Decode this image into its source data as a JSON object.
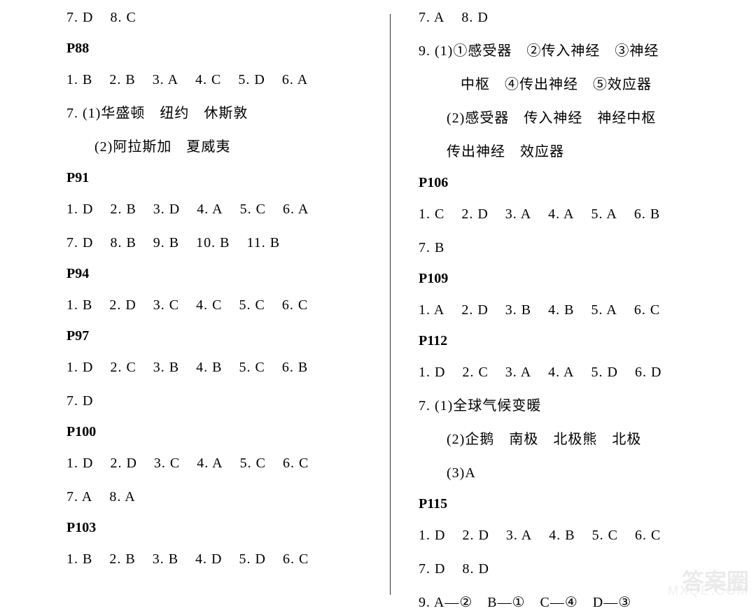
{
  "left_column": {
    "top_line": [
      {
        "text": "7. D"
      },
      {
        "text": "8. C"
      }
    ],
    "p88": {
      "header": "P88",
      "line1": [
        {
          "text": "1. B"
        },
        {
          "text": "2. B"
        },
        {
          "text": "3. A"
        },
        {
          "text": "4. C"
        },
        {
          "text": "5. D"
        },
        {
          "text": "6. A"
        }
      ],
      "line2": "7. (1)华盛顿　纽约　休斯敦",
      "line3": "(2)阿拉斯加　夏威夷"
    },
    "p91": {
      "header": "P91",
      "line1": [
        {
          "text": "1. D"
        },
        {
          "text": "2. B"
        },
        {
          "text": "3. D"
        },
        {
          "text": "4. A"
        },
        {
          "text": "5. C"
        },
        {
          "text": "6. A"
        }
      ],
      "line2": [
        {
          "text": "7. D"
        },
        {
          "text": "8. B"
        },
        {
          "text": "9. B"
        },
        {
          "text": "10. B"
        },
        {
          "text": "11. B"
        }
      ]
    },
    "p94": {
      "header": "P94",
      "line1": [
        {
          "text": "1. B"
        },
        {
          "text": "2. D"
        },
        {
          "text": "3. C"
        },
        {
          "text": "4. C"
        },
        {
          "text": "5. C"
        },
        {
          "text": "6. C"
        }
      ]
    },
    "p97": {
      "header": "P97",
      "line1": [
        {
          "text": "1. D"
        },
        {
          "text": "2. C"
        },
        {
          "text": "3. B"
        },
        {
          "text": "4. B"
        },
        {
          "text": "5. C"
        },
        {
          "text": "6. B"
        }
      ],
      "line2": [
        {
          "text": "7. D"
        }
      ]
    },
    "p100": {
      "header": "P100",
      "line1": [
        {
          "text": "1. D"
        },
        {
          "text": "2. D"
        },
        {
          "text": "3. C"
        },
        {
          "text": "4. A"
        },
        {
          "text": "5. C"
        },
        {
          "text": "6. C"
        }
      ],
      "line2": [
        {
          "text": "7. A"
        },
        {
          "text": "8. A"
        }
      ]
    },
    "p103": {
      "header": "P103",
      "line1": [
        {
          "text": "1. B"
        },
        {
          "text": "2. B"
        },
        {
          "text": "3. B"
        },
        {
          "text": "4. D"
        },
        {
          "text": "5. D"
        },
        {
          "text": "6. C"
        }
      ]
    }
  },
  "right_column": {
    "top_line": [
      {
        "text": "7. A"
      },
      {
        "text": "8. D"
      }
    ],
    "q9_line1": "9. (1)①感受器　②传入神经　③神经",
    "q9_line2": "中枢　④传出神经　⑤效应器",
    "q9_line3": "(2)感受器　传入神经　神经中枢",
    "q9_line4": "传出神经　效应器",
    "p106": {
      "header": "P106",
      "line1": [
        {
          "text": "1. C"
        },
        {
          "text": "2. D"
        },
        {
          "text": "3. A"
        },
        {
          "text": "4. A"
        },
        {
          "text": "5. A"
        },
        {
          "text": "6. B"
        }
      ],
      "line2": [
        {
          "text": "7. B"
        }
      ]
    },
    "p109": {
      "header": "P109",
      "line1": [
        {
          "text": "1. A"
        },
        {
          "text": "2. D"
        },
        {
          "text": "3. B"
        },
        {
          "text": "4. B"
        },
        {
          "text": "5. A"
        },
        {
          "text": "6. C"
        }
      ]
    },
    "p112": {
      "header": "P112",
      "line1": [
        {
          "text": "1. D"
        },
        {
          "text": "2. C"
        },
        {
          "text": "3. A"
        },
        {
          "text": "4. A"
        },
        {
          "text": "5. D"
        },
        {
          "text": "6. D"
        }
      ],
      "line2": "7. (1)全球气候变暖",
      "line3": "(2)企鹅　南极　北极熊　北极",
      "line4": "(3)A"
    },
    "p115": {
      "header": "P115",
      "line1": [
        {
          "text": "1. D"
        },
        {
          "text": "2. D"
        },
        {
          "text": "3. A"
        },
        {
          "text": "4. B"
        },
        {
          "text": "5. C"
        },
        {
          "text": "6. C"
        }
      ],
      "line2": [
        {
          "text": "7. D"
        },
        {
          "text": "8. D"
        }
      ],
      "line3": "9. A—②　B—①　C—④　D—③"
    }
  },
  "watermark": {
    "logo": "答案圈",
    "url": "MXQE.COM"
  },
  "styles": {
    "background_color": "#ffffff",
    "text_color": "#000000",
    "font_size": 20,
    "header_font_weight": "bold",
    "divider_color": "#333333",
    "watermark_color": "#d8d8d8"
  }
}
